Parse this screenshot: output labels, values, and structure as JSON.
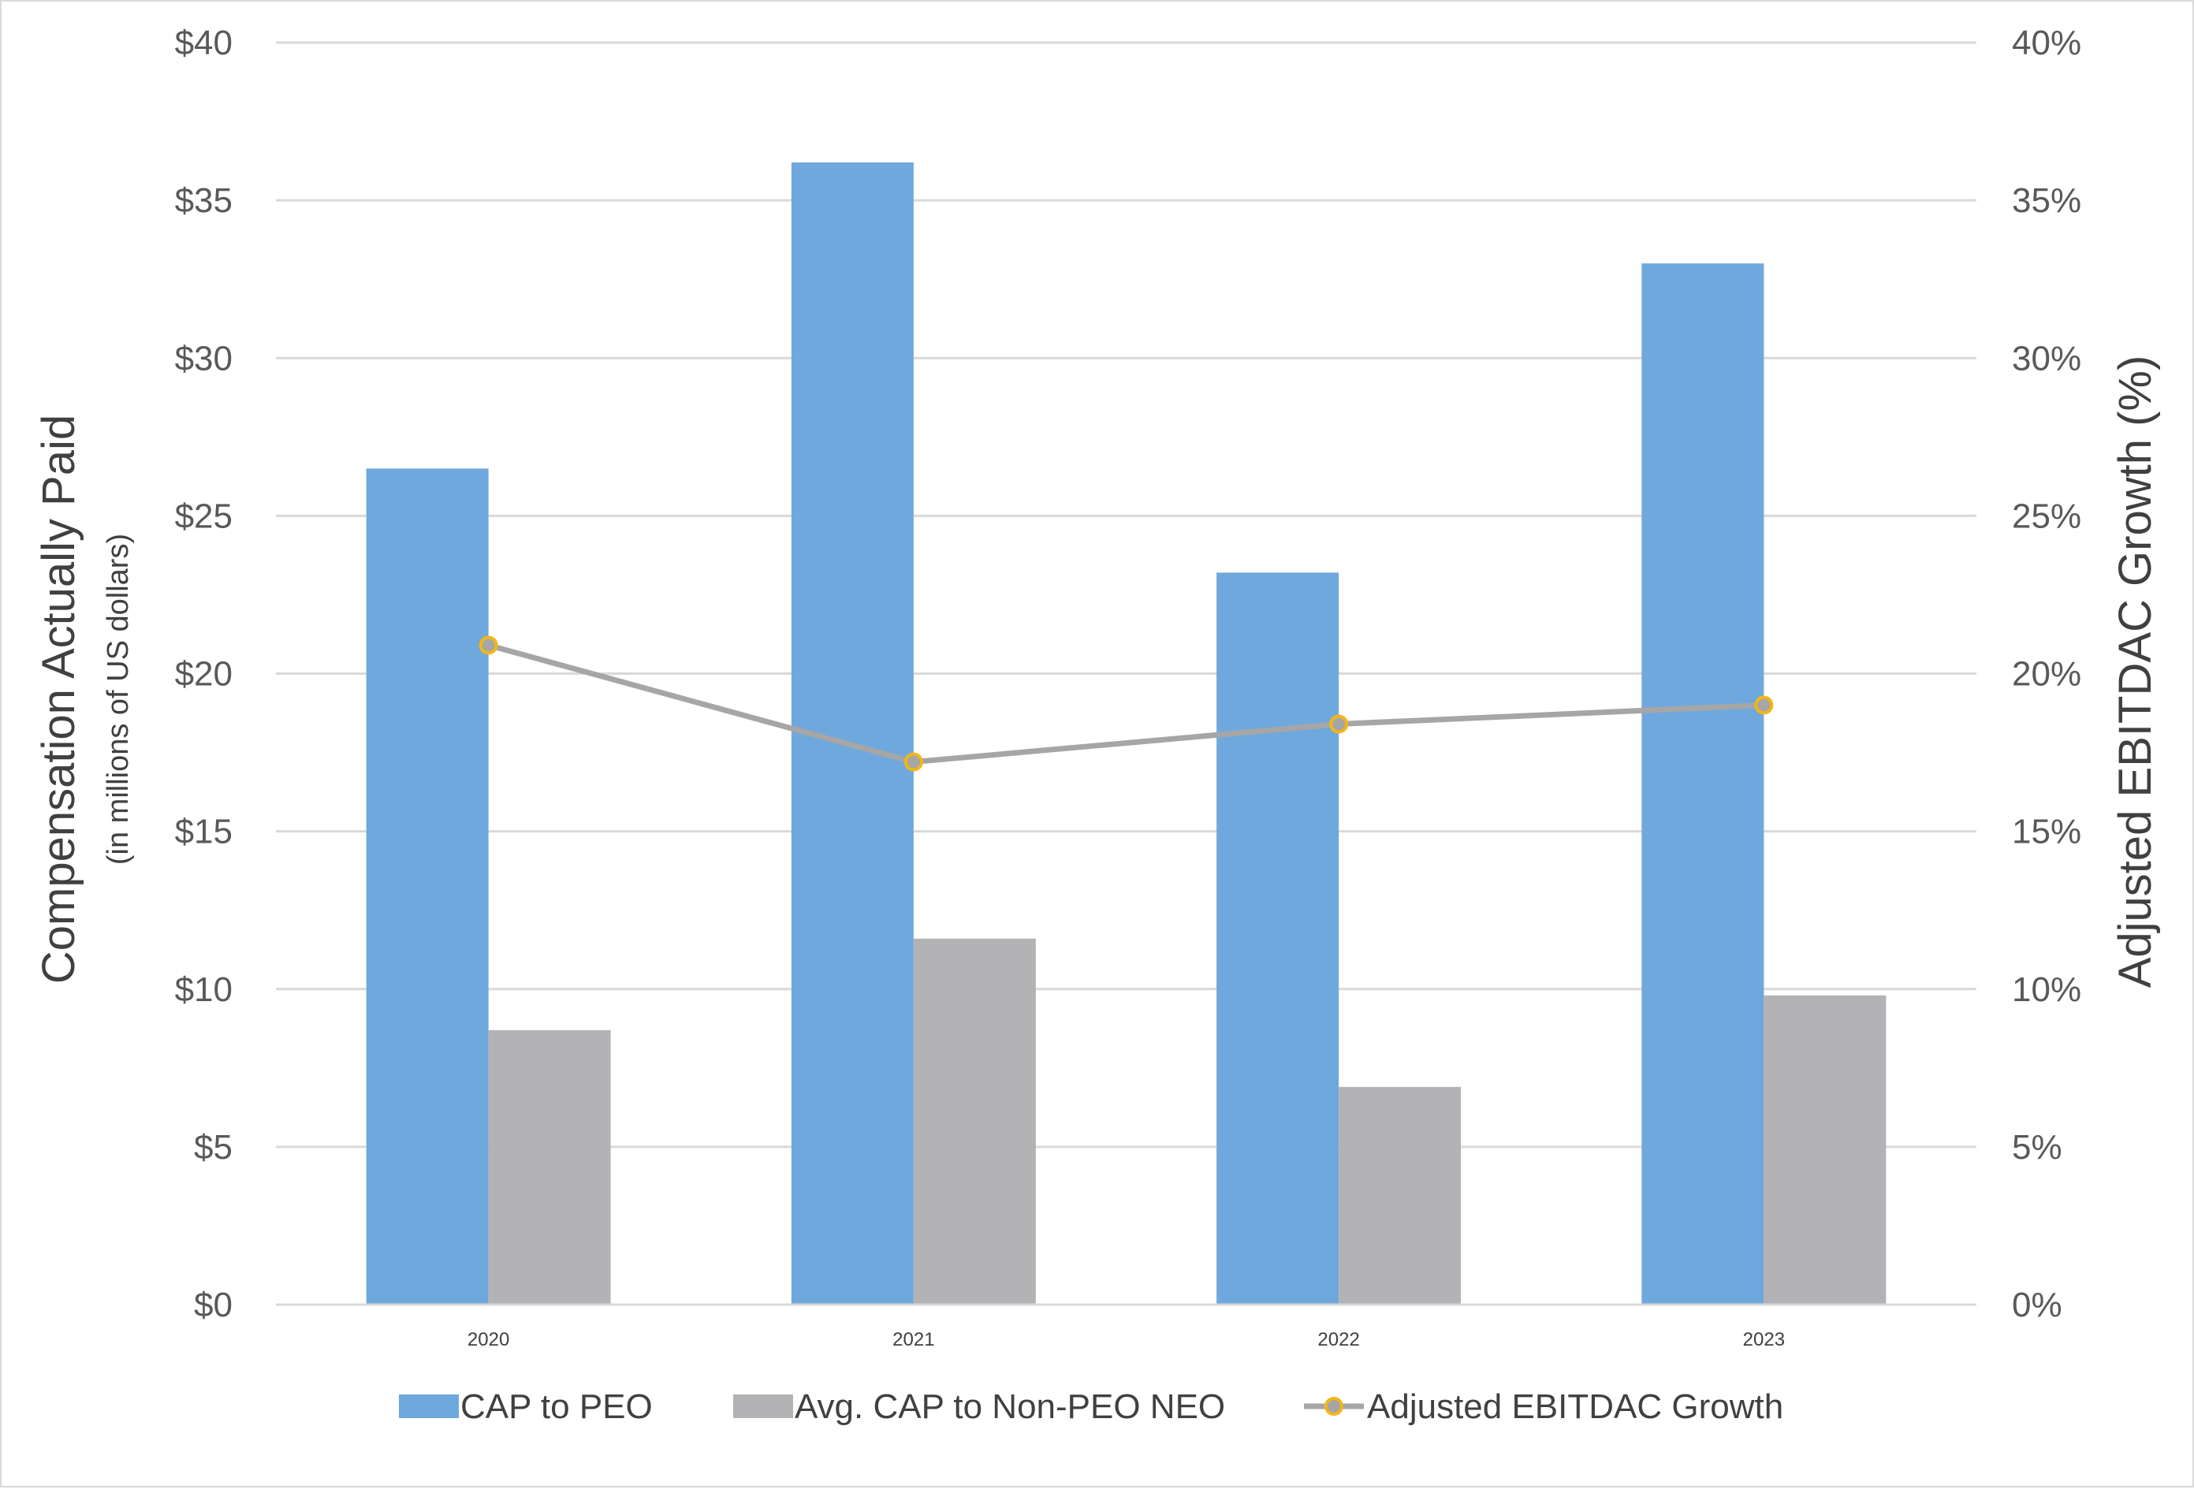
{
  "chart_data": {
    "type": "bar",
    "categories": [
      "2020",
      "2021",
      "2022",
      "2023"
    ],
    "series": [
      {
        "name": "CAP to PEO",
        "axis": "left",
        "kind": "bar",
        "color": "#6fa8dc",
        "values": [
          26.5,
          36.2,
          23.2,
          33.0
        ]
      },
      {
        "name": "Avg. CAP to Non-PEO NEO",
        "axis": "left",
        "kind": "bar",
        "color": "#b3b3b6",
        "values": [
          8.7,
          11.6,
          6.9,
          9.8
        ]
      },
      {
        "name": "Adjusted EBITDAC Growth",
        "axis": "right",
        "kind": "line",
        "color": "#a6a6a6",
        "marker_color": "#f2b617",
        "values": [
          20.9,
          17.2,
          18.4,
          19.0
        ]
      }
    ],
    "left_axis": {
      "title": "Compensation Actually Paid",
      "subtitle": "(in millions of US dollars)",
      "range": [
        0,
        40
      ],
      "ticks": [
        0,
        5,
        10,
        15,
        20,
        25,
        30,
        35,
        40
      ],
      "tick_labels": [
        "$0",
        "$5",
        "$10",
        "$15",
        "$20",
        "$25",
        "$30",
        "$35",
        "$40"
      ]
    },
    "right_axis": {
      "title": "Adjusted EBITDAC Growth (%)",
      "range": [
        0,
        40
      ],
      "ticks": [
        0,
        5,
        10,
        15,
        20,
        25,
        30,
        35,
        40
      ],
      "tick_labels": [
        "0%",
        "5%",
        "10%",
        "15%",
        "20%",
        "25%",
        "30%",
        "35%",
        "40%"
      ]
    },
    "gridlines": true,
    "legend_position": "bottom-center"
  }
}
